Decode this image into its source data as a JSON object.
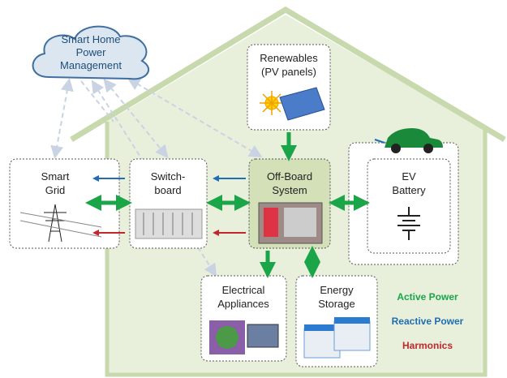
{
  "cloud": {
    "lines": [
      "Smart Home",
      "Power",
      "Management"
    ]
  },
  "nodes": [
    {
      "lines": [
        "Renewables",
        "(PV panels)"
      ]
    },
    {
      "lines": [
        "Smart",
        "Grid"
      ]
    },
    {
      "lines": [
        "Switch-",
        "board"
      ]
    },
    {
      "lines": [
        "Off-Board",
        "System"
      ]
    },
    {
      "lines": [
        "EV",
        "Battery"
      ]
    },
    {
      "lines": [
        "Electrical",
        "Appliances"
      ]
    },
    {
      "lines": [
        "Energy",
        "Storage"
      ]
    }
  ],
  "legend": [
    {
      "label": "Active Power",
      "color": "#1aa549"
    },
    {
      "label": "Reactive Power",
      "color": "#1f6db3"
    },
    {
      "label": "Harmonics",
      "color": "#c1272d"
    }
  ]
}
